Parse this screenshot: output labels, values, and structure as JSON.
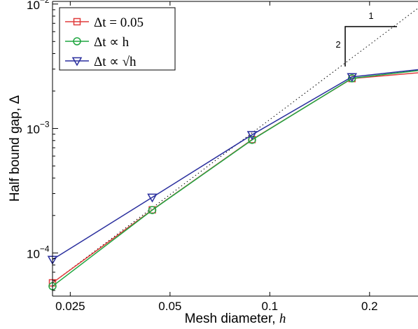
{
  "chart_data": {
    "type": "line",
    "title": "",
    "xscale": "log",
    "yscale": "log",
    "xlabel": "Mesh diameter, ",
    "xlabel_symbol": "h",
    "ylabel": "Half bound gap, Δ",
    "xlim": [
      0.0221,
      0.28
    ],
    "ylim": [
      4.5e-05,
      0.0105
    ],
    "x_ticks": [
      {
        "value": 0.025,
        "label": "0.025"
      },
      {
        "value": 0.05,
        "label": "0.05"
      },
      {
        "value": 0.1,
        "label": "0.1"
      },
      {
        "value": 0.2,
        "label": "0.2"
      }
    ],
    "y_ticks": [
      {
        "value": 0.0001,
        "base": "10",
        "exp": "−4"
      },
      {
        "value": 0.001,
        "base": "10",
        "exp": "−3"
      },
      {
        "value": 0.01,
        "base": "10",
        "exp": "−2"
      }
    ],
    "grid": false,
    "legend_position": "top-left",
    "series": [
      {
        "name": "Δt = 0.05",
        "color": "#e03c3c",
        "marker": "square",
        "x": [
          0.0221,
          0.0442,
          0.0884,
          0.177,
          0.28
        ],
        "y": [
          5.75e-05,
          0.000222,
          0.000815,
          0.00252,
          0.0028
        ]
      },
      {
        "name": "Δt ∝ h",
        "color": "#1fa640",
        "marker": "circle",
        "x": [
          0.0221,
          0.0442,
          0.0884,
          0.177,
          0.28
        ],
        "y": [
          5.4e-05,
          0.000221,
          0.00081,
          0.00253,
          0.00292
        ]
      },
      {
        "name": "Δt ∝ √h",
        "color": "#2a2f9e",
        "marker": "triangle-down",
        "x": [
          0.0221,
          0.0442,
          0.0884,
          0.177,
          0.28
        ],
        "y": [
          8.85e-05,
          0.00028,
          0.00089,
          0.0026,
          0.00297
        ]
      }
    ],
    "reference_line": {
      "style": "dotted",
      "slope": 2,
      "x": [
        0.0221,
        0.28
      ],
      "y": [
        5.75e-05,
        0.00925
      ]
    },
    "slope_triangle": {
      "run_label": "1",
      "rise_label": "2"
    }
  }
}
